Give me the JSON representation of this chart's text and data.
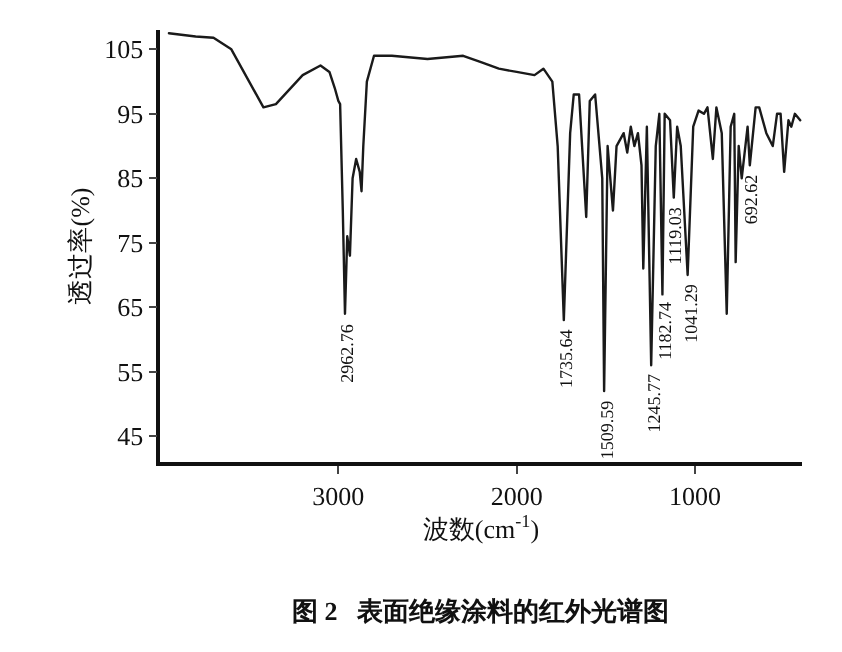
{
  "chart_data": {
    "type": "line",
    "title": "图 2   表面绝缘涂料的红外光谱图",
    "xlabel": "波数(cm$^{-1}$)",
    "ylabel": "透过率(%)",
    "xlim": [
      4000,
      400
    ],
    "ylim": [
      41,
      108
    ],
    "xticks": [
      3000,
      2000,
      1000
    ],
    "yticks": [
      45,
      55,
      65,
      75,
      85,
      95,
      105
    ],
    "grid": false,
    "marker": "none",
    "line_style": "solid",
    "x": [
      3950,
      3800,
      3700,
      3600,
      3500,
      3420,
      3350,
      3200,
      3100,
      3050,
      3020,
      3000,
      2990,
      2975,
      2962.76,
      2950,
      2935,
      2920,
      2900,
      2880,
      2870,
      2860,
      2840,
      2800,
      2700,
      2500,
      2300,
      2200,
      2100,
      2000,
      1900,
      1850,
      1800,
      1770,
      1735.64,
      1700,
      1680,
      1650,
      1610,
      1590,
      1560,
      1520,
      1509.59,
      1490,
      1460,
      1440,
      1400,
      1380,
      1360,
      1340,
      1320,
      1300,
      1290,
      1270,
      1245.77,
      1220,
      1200,
      1182.74,
      1170,
      1140,
      1119.03,
      1100,
      1080,
      1041.29,
      1010,
      980,
      950,
      930,
      900,
      880,
      850,
      822,
      800,
      780,
      772,
      755,
      738,
      705,
      692.62,
      660,
      640,
      600,
      564,
      540,
      520,
      500,
      476,
      460,
      440,
      410
    ],
    "series": [
      {
        "color": "#1a1a1a",
        "values": [
          107.5,
          107,
          106.8,
          105,
          100,
          96,
          96.5,
          101,
          102.5,
          101.5,
          99,
          97,
          96.5,
          80,
          64,
          76,
          73,
          85,
          88,
          86,
          83,
          90,
          100,
          104,
          104,
          103.5,
          104,
          103,
          102,
          101.5,
          101,
          102,
          100,
          90,
          63,
          92,
          98,
          98,
          79,
          97,
          98,
          85,
          52,
          90,
          80,
          90,
          92,
          89,
          93,
          90,
          92,
          87,
          71,
          93,
          56,
          90,
          95,
          67,
          95,
          94,
          82,
          93,
          90,
          70,
          93,
          95.5,
          95,
          96,
          88,
          96,
          92,
          64,
          93,
          95,
          72,
          90,
          85,
          93,
          87,
          96,
          96,
          92,
          90,
          95,
          95,
          86,
          94,
          93,
          95,
          94
        ]
      }
    ],
    "annotations": [
      {
        "text": "2962.76",
        "x": 2962.76,
        "y": 64
      },
      {
        "text": "1735.64",
        "x": 1735.64,
        "y": 63
      },
      {
        "text": "1509.59",
        "x": 1509.59,
        "y": 52
      },
      {
        "text": "1245.77",
        "x": 1245.77,
        "y": 56
      },
      {
        "text": "1182.74",
        "x": 1182.74,
        "y": 67
      },
      {
        "text": "1119.03",
        "x": 1119.03,
        "y": 82
      },
      {
        "text": "1041.29",
        "x": 1041.29,
        "y": 70
      },
      {
        "text": "692.62",
        "x": 692.62,
        "y": 87
      }
    ]
  }
}
